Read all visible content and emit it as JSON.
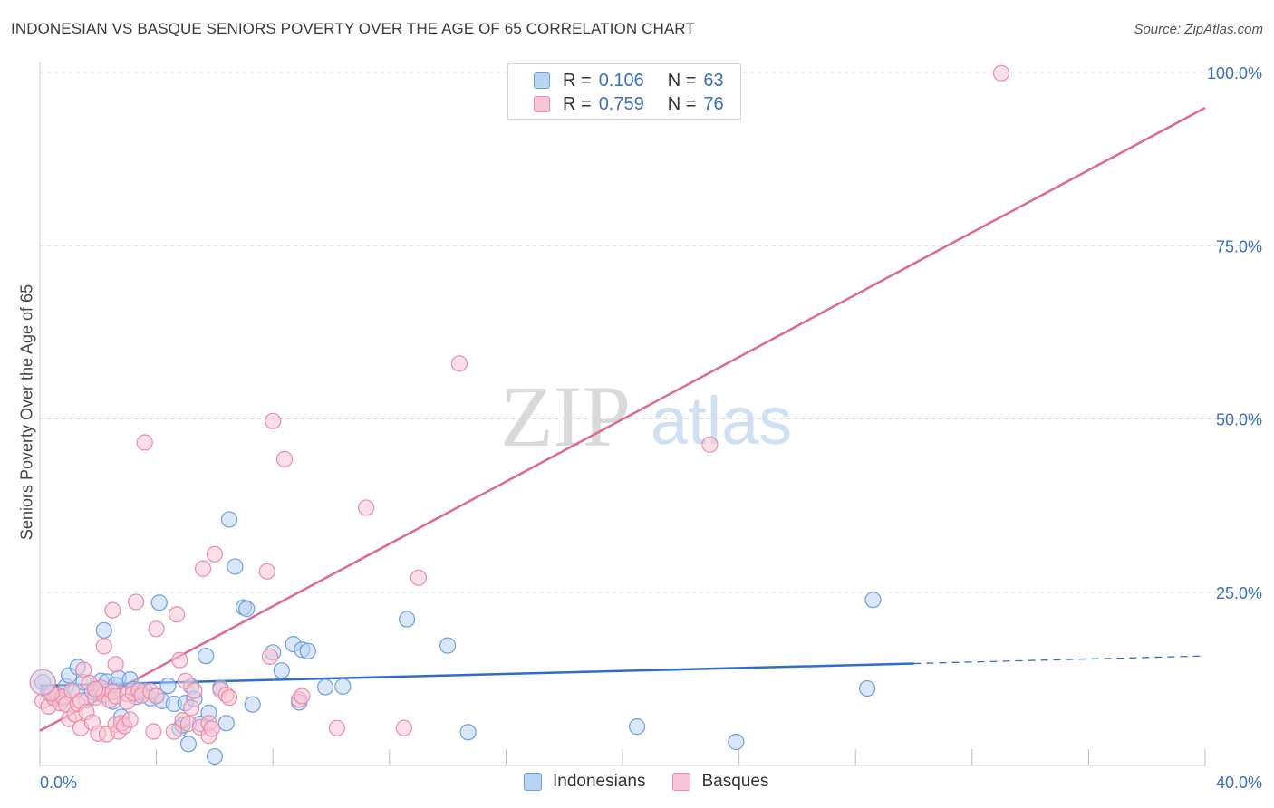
{
  "title": "INDONESIAN VS BASQUE SENIORS POVERTY OVER THE AGE OF 65 CORRELATION CHART",
  "source": "Source: ZipAtlas.com",
  "watermark": {
    "zip": "ZIP",
    "atlas": "atlas"
  },
  "legend": {
    "rows": [
      {
        "r_label": "R =",
        "r_value": "0.106",
        "n_label": "N =",
        "n_value": "63"
      },
      {
        "r_label": "R =",
        "r_value": "0.759",
        "n_label": "N =",
        "n_value": "76"
      }
    ]
  },
  "bottom_legend": {
    "indonesians": "Indonesians",
    "basques": "Basques"
  },
  "colors": {
    "indonesians_fill": "#b9d3f3",
    "indonesians_stroke": "#6f9fe0",
    "indonesians_line": "#2f6ec8",
    "basques_fill": "#f8c4d4",
    "basques_stroke": "#ea8ca9",
    "basques_line": "#e06890",
    "axis_blue": "#3a6fc4",
    "grid": "#dcdcdc"
  },
  "chart_data": {
    "type": "scatter",
    "xlabel": "",
    "ylabel": "Seniors Poverty Over the Age of 65",
    "xlim": [
      0,
      40
    ],
    "ylim": [
      0,
      100
    ],
    "x_tick_labels": [
      "0.0%",
      "40.0%"
    ],
    "y_ticks": [
      25,
      50,
      75,
      100
    ],
    "y_tick_labels": [
      "25.0%",
      "50.0%",
      "75.0%",
      "100.0%"
    ],
    "grid": true,
    "legend_position": "top-center",
    "series": [
      {
        "name": "Indonesians",
        "trend": {
          "x": [
            0,
            30.0
          ],
          "y": [
            11.5,
            14.7
          ],
          "dashed_to_x": 40,
          "dashed_y": 15.8
        },
        "points": [
          [
            0.1,
            12.0
          ],
          [
            0.3,
            10.5
          ],
          [
            0.5,
            9.8
          ],
          [
            0.6,
            10.2
          ],
          [
            0.8,
            9.6
          ],
          [
            0.9,
            11.4
          ],
          [
            1.0,
            13.0
          ],
          [
            1.2,
            10.8
          ],
          [
            1.3,
            14.2
          ],
          [
            1.5,
            12.0
          ],
          [
            1.6,
            9.4
          ],
          [
            1.8,
            10.6
          ],
          [
            2.0,
            11.1
          ],
          [
            2.1,
            12.2
          ],
          [
            2.2,
            19.5
          ],
          [
            2.3,
            12.1
          ],
          [
            2.5,
            9.2
          ],
          [
            2.6,
            11.6
          ],
          [
            2.7,
            12.6
          ],
          [
            2.8,
            7.0
          ],
          [
            3.1,
            12.4
          ],
          [
            3.2,
            11.0
          ],
          [
            3.3,
            9.9
          ],
          [
            3.5,
            10.5
          ],
          [
            3.6,
            10.8
          ],
          [
            3.8,
            9.7
          ],
          [
            4.0,
            10.1
          ],
          [
            4.1,
            23.5
          ],
          [
            4.2,
            9.3
          ],
          [
            4.4,
            11.5
          ],
          [
            4.6,
            8.9
          ],
          [
            4.8,
            5.3
          ],
          [
            4.9,
            5.8
          ],
          [
            5.0,
            9.0
          ],
          [
            5.1,
            3.1
          ],
          [
            5.2,
            11.4
          ],
          [
            5.3,
            9.6
          ],
          [
            5.5,
            6.0
          ],
          [
            5.7,
            15.8
          ],
          [
            5.8,
            7.6
          ],
          [
            6.0,
            1.3
          ],
          [
            6.2,
            11.2
          ],
          [
            6.4,
            6.1
          ],
          [
            6.5,
            35.5
          ],
          [
            6.7,
            28.7
          ],
          [
            7.0,
            22.8
          ],
          [
            7.1,
            22.6
          ],
          [
            7.3,
            8.8
          ],
          [
            8.0,
            16.3
          ],
          [
            8.3,
            13.7
          ],
          [
            8.7,
            17.5
          ],
          [
            8.9,
            9.1
          ],
          [
            9.0,
            16.7
          ],
          [
            9.2,
            16.5
          ],
          [
            9.8,
            11.3
          ],
          [
            10.4,
            11.4
          ],
          [
            12.6,
            21.1
          ],
          [
            14.0,
            17.3
          ],
          [
            14.7,
            4.8
          ],
          [
            20.5,
            5.6
          ],
          [
            23.9,
            3.4
          ],
          [
            28.4,
            11.1
          ],
          [
            28.6,
            23.9
          ]
        ]
      },
      {
        "name": "Basques",
        "trend": {
          "x": [
            0,
            40
          ],
          "y": [
            5.0,
            94.9
          ]
        },
        "points": [
          [
            0.1,
            9.3
          ],
          [
            0.3,
            8.5
          ],
          [
            0.5,
            9.7
          ],
          [
            0.6,
            10.1
          ],
          [
            0.7,
            9.0
          ],
          [
            0.8,
            9.9
          ],
          [
            0.9,
            8.8
          ],
          [
            1.0,
            6.7
          ],
          [
            1.1,
            10.8
          ],
          [
            1.2,
            7.4
          ],
          [
            1.3,
            8.9
          ],
          [
            1.4,
            9.3
          ],
          [
            1.4,
            5.4
          ],
          [
            1.5,
            13.8
          ],
          [
            1.6,
            7.7
          ],
          [
            1.7,
            11.9
          ],
          [
            1.8,
            6.2
          ],
          [
            1.9,
            9.8
          ],
          [
            2.0,
            4.6
          ],
          [
            2.1,
            11.2
          ],
          [
            2.2,
            10.2
          ],
          [
            2.2,
            17.2
          ],
          [
            2.3,
            4.5
          ],
          [
            2.4,
            9.4
          ],
          [
            2.5,
            10.6
          ],
          [
            2.5,
            22.4
          ],
          [
            2.6,
            14.6
          ],
          [
            2.6,
            10.0
          ],
          [
            2.6,
            5.9
          ],
          [
            2.7,
            4.9
          ],
          [
            2.8,
            6.1
          ],
          [
            2.9,
            5.7
          ],
          [
            3.0,
            10.3
          ],
          [
            3.0,
            9.2
          ],
          [
            3.1,
            6.6
          ],
          [
            3.2,
            10.4
          ],
          [
            3.3,
            23.6
          ],
          [
            3.4,
            10.8
          ],
          [
            3.5,
            10.1
          ],
          [
            3.6,
            46.6
          ],
          [
            3.8,
            10.7
          ],
          [
            3.9,
            4.9
          ],
          [
            4.0,
            19.7
          ],
          [
            4.0,
            10.0
          ],
          [
            4.6,
            4.9
          ],
          [
            4.7,
            21.8
          ],
          [
            4.8,
            15.2
          ],
          [
            4.9,
            6.5
          ],
          [
            5.0,
            12.2
          ],
          [
            5.1,
            6.0
          ],
          [
            5.2,
            8.3
          ],
          [
            5.3,
            10.8
          ],
          [
            5.5,
            5.5
          ],
          [
            5.6,
            28.4
          ],
          [
            5.8,
            4.3
          ],
          [
            5.8,
            6.1
          ],
          [
            5.9,
            5.3
          ],
          [
            6.0,
            30.5
          ],
          [
            6.2,
            10.9
          ],
          [
            6.4,
            10.2
          ],
          [
            6.5,
            9.8
          ],
          [
            7.8,
            28.0
          ],
          [
            7.9,
            15.7
          ],
          [
            8.0,
            49.7
          ],
          [
            8.4,
            44.2
          ],
          [
            8.9,
            9.5
          ],
          [
            9.0,
            10.0
          ],
          [
            10.2,
            5.4
          ],
          [
            11.2,
            37.2
          ],
          [
            12.5,
            5.4
          ],
          [
            13.0,
            27.1
          ],
          [
            14.4,
            58.0
          ],
          [
            23.0,
            46.3
          ],
          [
            33.0,
            99.9
          ],
          [
            0.4,
            10.4
          ],
          [
            1.9,
            11.0
          ]
        ]
      }
    ]
  }
}
